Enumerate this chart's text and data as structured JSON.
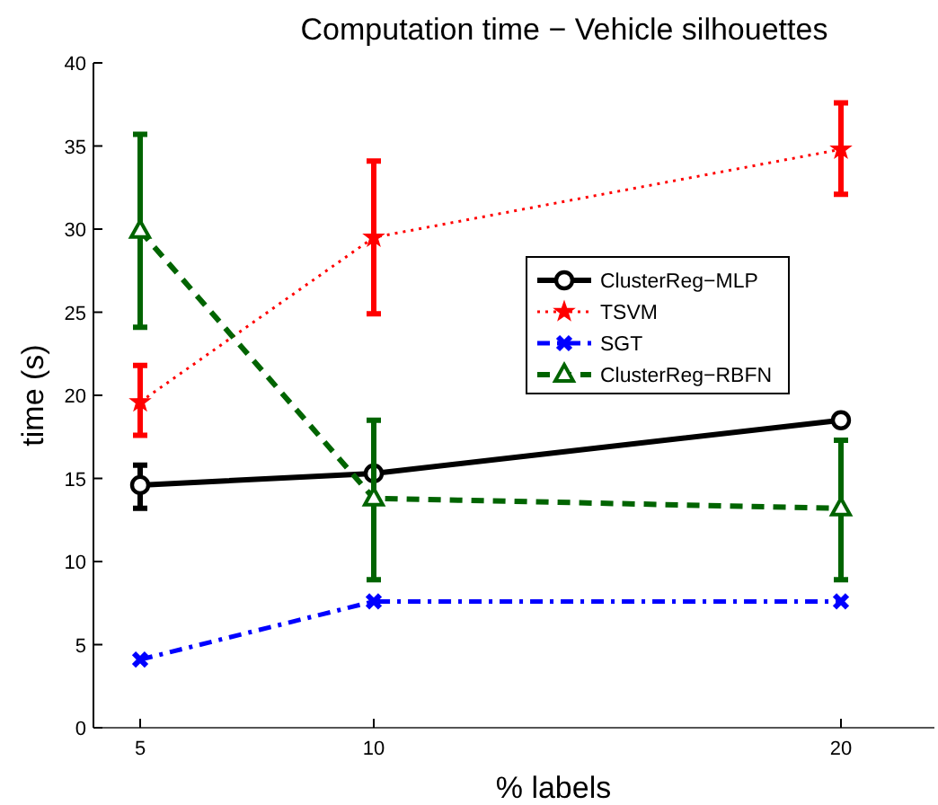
{
  "chart_data": {
    "type": "line",
    "title": "Computation time − Vehicle silhouettes",
    "xlabel": "% labels",
    "ylabel": "time (s)",
    "x": [
      5,
      10,
      20
    ],
    "xlim": [
      4,
      22
    ],
    "xticks": [
      5,
      10,
      20
    ],
    "ylim": [
      0,
      40
    ],
    "yticks": [
      0,
      5,
      10,
      15,
      20,
      25,
      30,
      35,
      40
    ],
    "grid": false,
    "legend": "right",
    "series": [
      {
        "name": "ClusterReg−MLP",
        "color": "#000000",
        "marker": "circle",
        "line_style": "solid",
        "values": [
          14.6,
          15.3,
          18.5
        ],
        "errors": [
          [
            13.2,
            15.8
          ],
          null,
          null
        ]
      },
      {
        "name": "TSVM",
        "color": "#ff0000",
        "marker": "star",
        "line_style": "dotted",
        "values": [
          19.6,
          29.5,
          34.8
        ],
        "errors": [
          [
            17.6,
            21.8
          ],
          [
            24.9,
            34.1
          ],
          [
            32.1,
            37.6
          ]
        ]
      },
      {
        "name": "SGT",
        "color": "#0000ff",
        "marker": "cross",
        "line_style": "dashdot",
        "values": [
          4.1,
          7.6,
          7.6
        ]
      },
      {
        "name": "ClusterReg−RBFN",
        "color": "#006400",
        "marker": "triangle",
        "line_style": "dashed",
        "values": [
          29.9,
          13.8,
          13.2
        ],
        "errors": [
          [
            24.1,
            35.7
          ],
          [
            8.9,
            18.5
          ],
          [
            8.9,
            17.3
          ]
        ]
      }
    ]
  }
}
